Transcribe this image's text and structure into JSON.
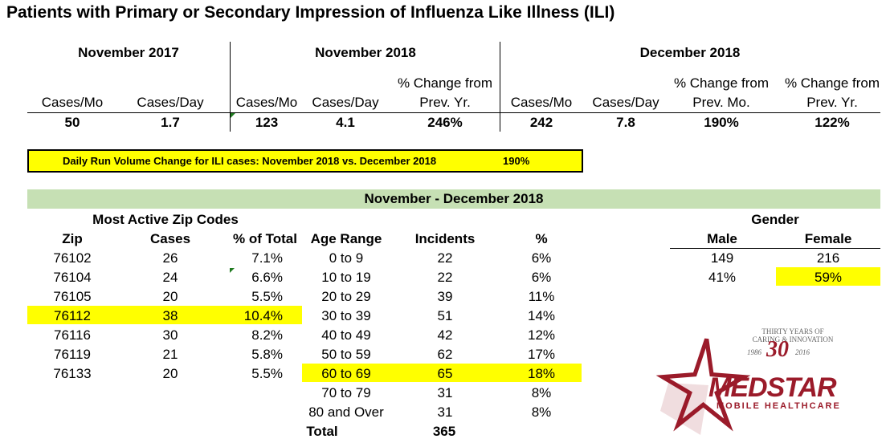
{
  "title": "Patients with Primary or Secondary Impression of Influenza Like Illness (ILI)",
  "periods": {
    "nov2017": {
      "header": "November 2017",
      "cols": [
        "Cases/Mo",
        "Cases/Day"
      ],
      "values": [
        "50",
        "1.7"
      ]
    },
    "nov2018": {
      "header": "November 2018",
      "cols": [
        "Cases/Mo",
        "Cases/Day",
        "% Change from",
        "Prev. Yr."
      ],
      "values": [
        "123",
        "4.1",
        "246%"
      ]
    },
    "dec2018": {
      "header": "December 2018",
      "cols": [
        "Cases/Mo",
        "Cases/Day",
        "% Change from",
        "Prev. Mo.",
        "% Change from",
        "Prev. Yr."
      ],
      "values": [
        "242",
        "7.8",
        "190%",
        "122%"
      ]
    }
  },
  "daily_run": {
    "label": "Daily Run Volume Change for ILI cases: November 2018 vs. December 2018",
    "value": "190%"
  },
  "section_header": "November - December 2018",
  "zip": {
    "title": "Most Active Zip Codes",
    "headers": [
      "Zip",
      "Cases",
      "% of Total"
    ],
    "rows": [
      [
        "76102",
        "26",
        "7.1%"
      ],
      [
        "76104",
        "24",
        "6.6%"
      ],
      [
        "76105",
        "20",
        "5.5%"
      ],
      [
        "76112",
        "38",
        "10.4%"
      ],
      [
        "76116",
        "30",
        "8.2%"
      ],
      [
        "76119",
        "21",
        "5.8%"
      ],
      [
        "76133",
        "20",
        "5.5%"
      ]
    ],
    "highlight_row": 3
  },
  "age": {
    "headers": [
      "Age Range",
      "Incidents",
      "%"
    ],
    "rows": [
      [
        "0 to 9",
        "22",
        "6%"
      ],
      [
        "10 to 19",
        "22",
        "6%"
      ],
      [
        "20 to 29",
        "39",
        "11%"
      ],
      [
        "30 to 39",
        "51",
        "14%"
      ],
      [
        "40 to 49",
        "42",
        "12%"
      ],
      [
        "50 to 59",
        "62",
        "17%"
      ],
      [
        "60 to 69",
        "65",
        "18%"
      ],
      [
        "70 to 79",
        "31",
        "8%"
      ],
      [
        "80 and Over",
        "31",
        "8%"
      ]
    ],
    "highlight_row": 6,
    "total_label": "Total",
    "total_value": "365"
  },
  "gender": {
    "title": "Gender",
    "headers": [
      "Male",
      "Female"
    ],
    "counts": [
      "149",
      "216"
    ],
    "percents": [
      "41%",
      "59%"
    ]
  },
  "logo": {
    "line1": "THIRTY YEARS OF",
    "line2": "CARING & INNOVATION",
    "year_start": "1986",
    "big_number": "30",
    "year_end": "2016",
    "brand": "MEDSTAR",
    "sub": "MOBILE HEALTHCARE",
    "color": "#9b1b2a"
  },
  "colors": {
    "highlight": "#ffff00",
    "section_band": "#c6e0b4"
  }
}
